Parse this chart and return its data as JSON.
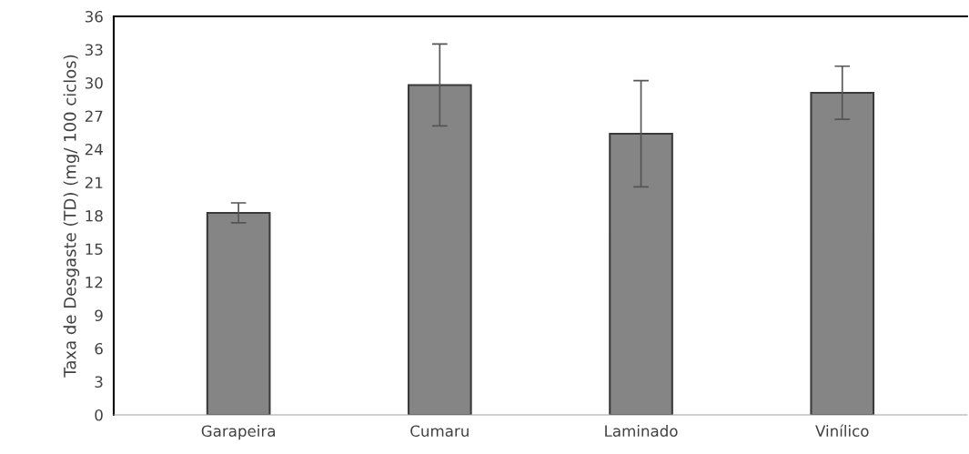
{
  "chart_data": {
    "type": "bar",
    "ylabel": "Taxa de Desgaste (TD) (mg/ 100 ciclos)",
    "categories": [
      "Garapeira",
      "Cumaru",
      "Laminado",
      "Vinílico"
    ],
    "values": [
      18.25,
      29.8,
      25.4,
      29.1
    ],
    "errors": [
      0.9,
      3.7,
      4.8,
      2.4
    ],
    "color": "#858585",
    "ylim": [
      0,
      36
    ],
    "yticks": [
      0,
      3,
      6,
      9,
      12,
      15,
      18,
      21,
      24,
      27,
      30,
      33,
      36
    ],
    "grid": false
  }
}
